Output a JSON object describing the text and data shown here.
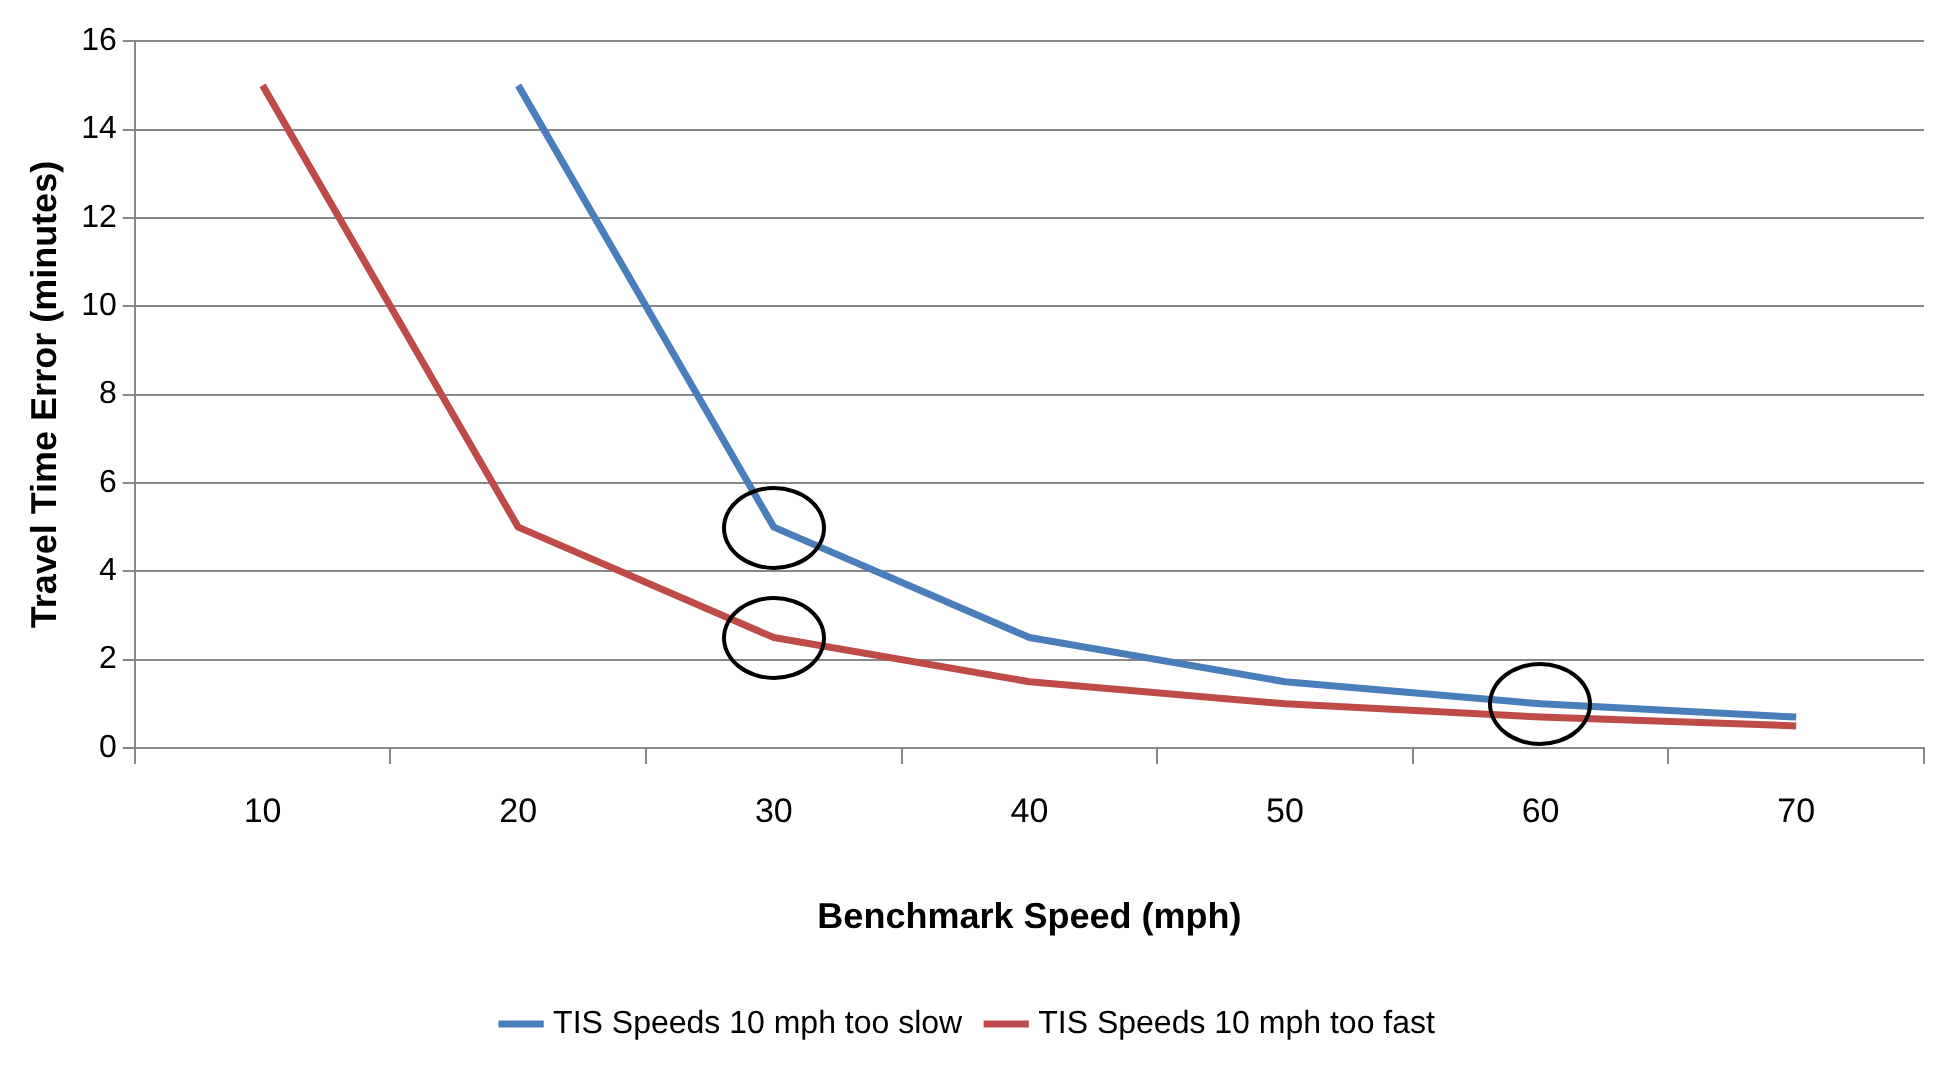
{
  "chart_data": {
    "type": "line",
    "xlabel": "Benchmark Speed (mph)",
    "ylabel": "Travel Time Error (minutes)",
    "categories": [
      "10",
      "20",
      "30",
      "40",
      "50",
      "60",
      "70"
    ],
    "series": [
      {
        "name": "TIS Speeds 10 mph too slow",
        "color": "#4a7ebb",
        "values": [
          null,
          15,
          5,
          2.5,
          1.5,
          1,
          0.7
        ]
      },
      {
        "name": "TIS Speeds 10 mph too fast",
        "color": "#be4b48",
        "values": [
          15,
          5,
          2.5,
          1.5,
          1,
          0.7,
          0.5
        ]
      }
    ],
    "ylim": [
      0,
      16
    ],
    "yticks": [
      0,
      2,
      4,
      6,
      8,
      10,
      12,
      14,
      16
    ],
    "grid": "y",
    "legend": "bottom",
    "marker": "none",
    "line_style": "solid"
  }
}
